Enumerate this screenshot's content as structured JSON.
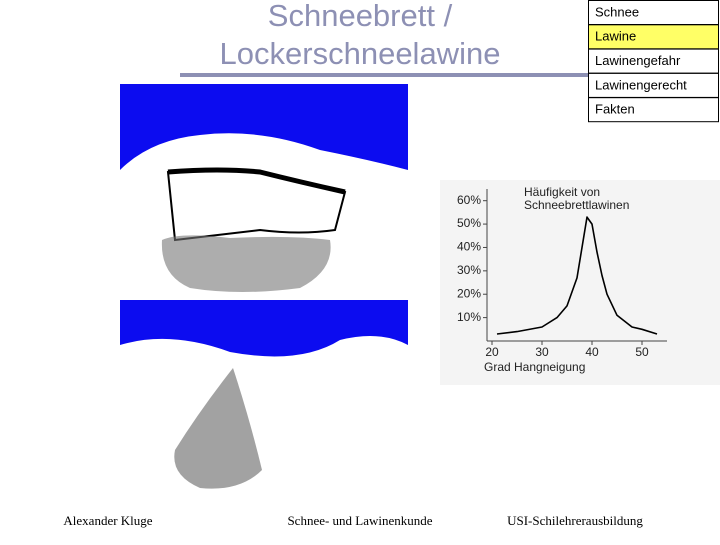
{
  "slide": {
    "title_lines": [
      "Schneebrett /",
      "Lockerschneelawine"
    ],
    "nav": [
      "Schnee",
      "Lawine",
      "Lawinengefahr",
      "Lawinengerecht",
      "Fakten"
    ],
    "nav_active": 1,
    "footer": [
      "Alexander Kluge",
      "Schnee- und Lawinenkunde",
      "USI-Schilehrerausbildung"
    ]
  },
  "chart_data": {
    "type": "line",
    "title_lines": [
      "Häufigkeit von",
      "Schneebrettlawinen"
    ],
    "x_label": "Grad Hangneigung",
    "x": [
      21,
      25,
      30,
      33,
      35,
      37,
      38,
      39,
      40,
      41,
      42,
      43,
      45,
      48,
      50,
      53
    ],
    "values": [
      3,
      4,
      6,
      10,
      15,
      27,
      40,
      53,
      50,
      38,
      28,
      20,
      11,
      6,
      5,
      3
    ],
    "color": "#000000",
    "xlim": [
      19,
      55
    ],
    "xticks": [
      20,
      30,
      40,
      50
    ],
    "ylim": [
      0,
      65
    ],
    "yticks": [
      {
        "value": 10,
        "label": "10%"
      },
      {
        "value": 20,
        "label": "20%"
      },
      {
        "value": 30,
        "label": "30%"
      },
      {
        "value": 40,
        "label": "40%"
      },
      {
        "value": 50,
        "label": "50%"
      },
      {
        "value": 60,
        "label": "60%"
      }
    ]
  }
}
